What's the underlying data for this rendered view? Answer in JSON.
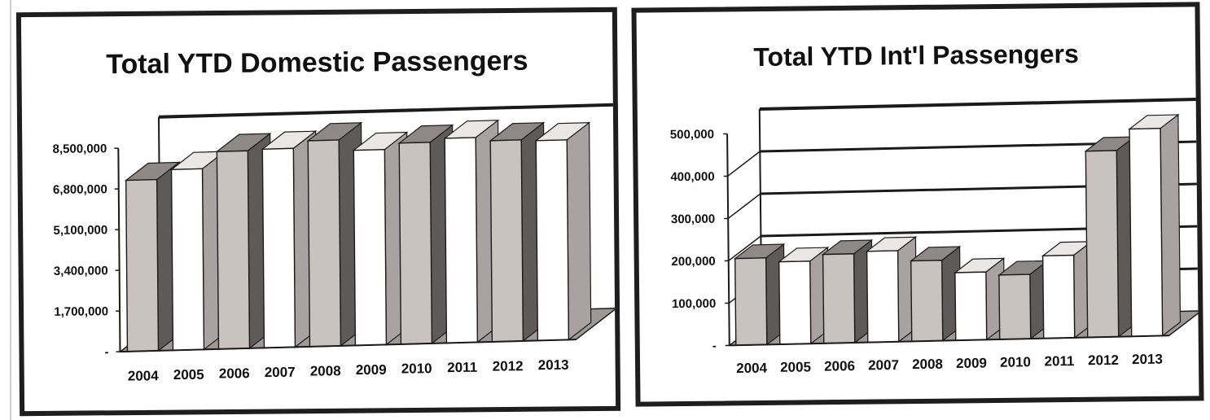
{
  "colors": {
    "gray_front": "#c9c3c0",
    "gray_top": "#8e8886",
    "gray_side": "#5e5a59",
    "white_front": "#ffffff",
    "white_top": "#ebe7e6",
    "white_side": "#a8a3a2",
    "frame": "#1a1a1a",
    "floor": "#9e9997"
  },
  "chart_data": [
    {
      "type": "bar",
      "title": "Total YTD Domestic Passengers",
      "categories": [
        "2004",
        "2005",
        "2006",
        "2007",
        "2008",
        "2009",
        "2010",
        "2011",
        "2012",
        "2013"
      ],
      "values": [
        7150000,
        7550000,
        8250000,
        8300000,
        8600000,
        8150000,
        8400000,
        8550000,
        8400000,
        8350000
      ],
      "bar_fill": [
        "gray",
        "white",
        "gray",
        "white",
        "gray",
        "white",
        "gray",
        "white",
        "gray",
        "white"
      ],
      "ylim": [
        0,
        8500000
      ],
      "yticks": [
        0,
        1700000,
        3400000,
        5100000,
        6800000,
        8500000
      ],
      "ytick_labels": [
        "-",
        "1,700,000",
        "3,400,000",
        "5,100,000",
        "6,800,000",
        "8,500,000"
      ],
      "grid": false,
      "style": "3d"
    },
    {
      "type": "bar",
      "title": "Total YTD Int'l Passengers",
      "categories": [
        "2004",
        "2005",
        "2006",
        "2007",
        "2008",
        "2009",
        "2010",
        "2011",
        "2012",
        "2013"
      ],
      "values": [
        205000,
        195000,
        210000,
        215000,
        190000,
        160000,
        152000,
        195000,
        440000,
        490000
      ],
      "bar_fill": [
        "gray",
        "white",
        "gray",
        "white",
        "gray",
        "white",
        "gray",
        "white",
        "gray",
        "white"
      ],
      "ylim": [
        0,
        500000
      ],
      "yticks": [
        0,
        100000,
        200000,
        300000,
        400000,
        500000
      ],
      "ytick_labels": [
        "-",
        "100,000",
        "200,000",
        "300,000",
        "400,000",
        "500,000"
      ],
      "grid": true,
      "style": "3d"
    }
  ]
}
